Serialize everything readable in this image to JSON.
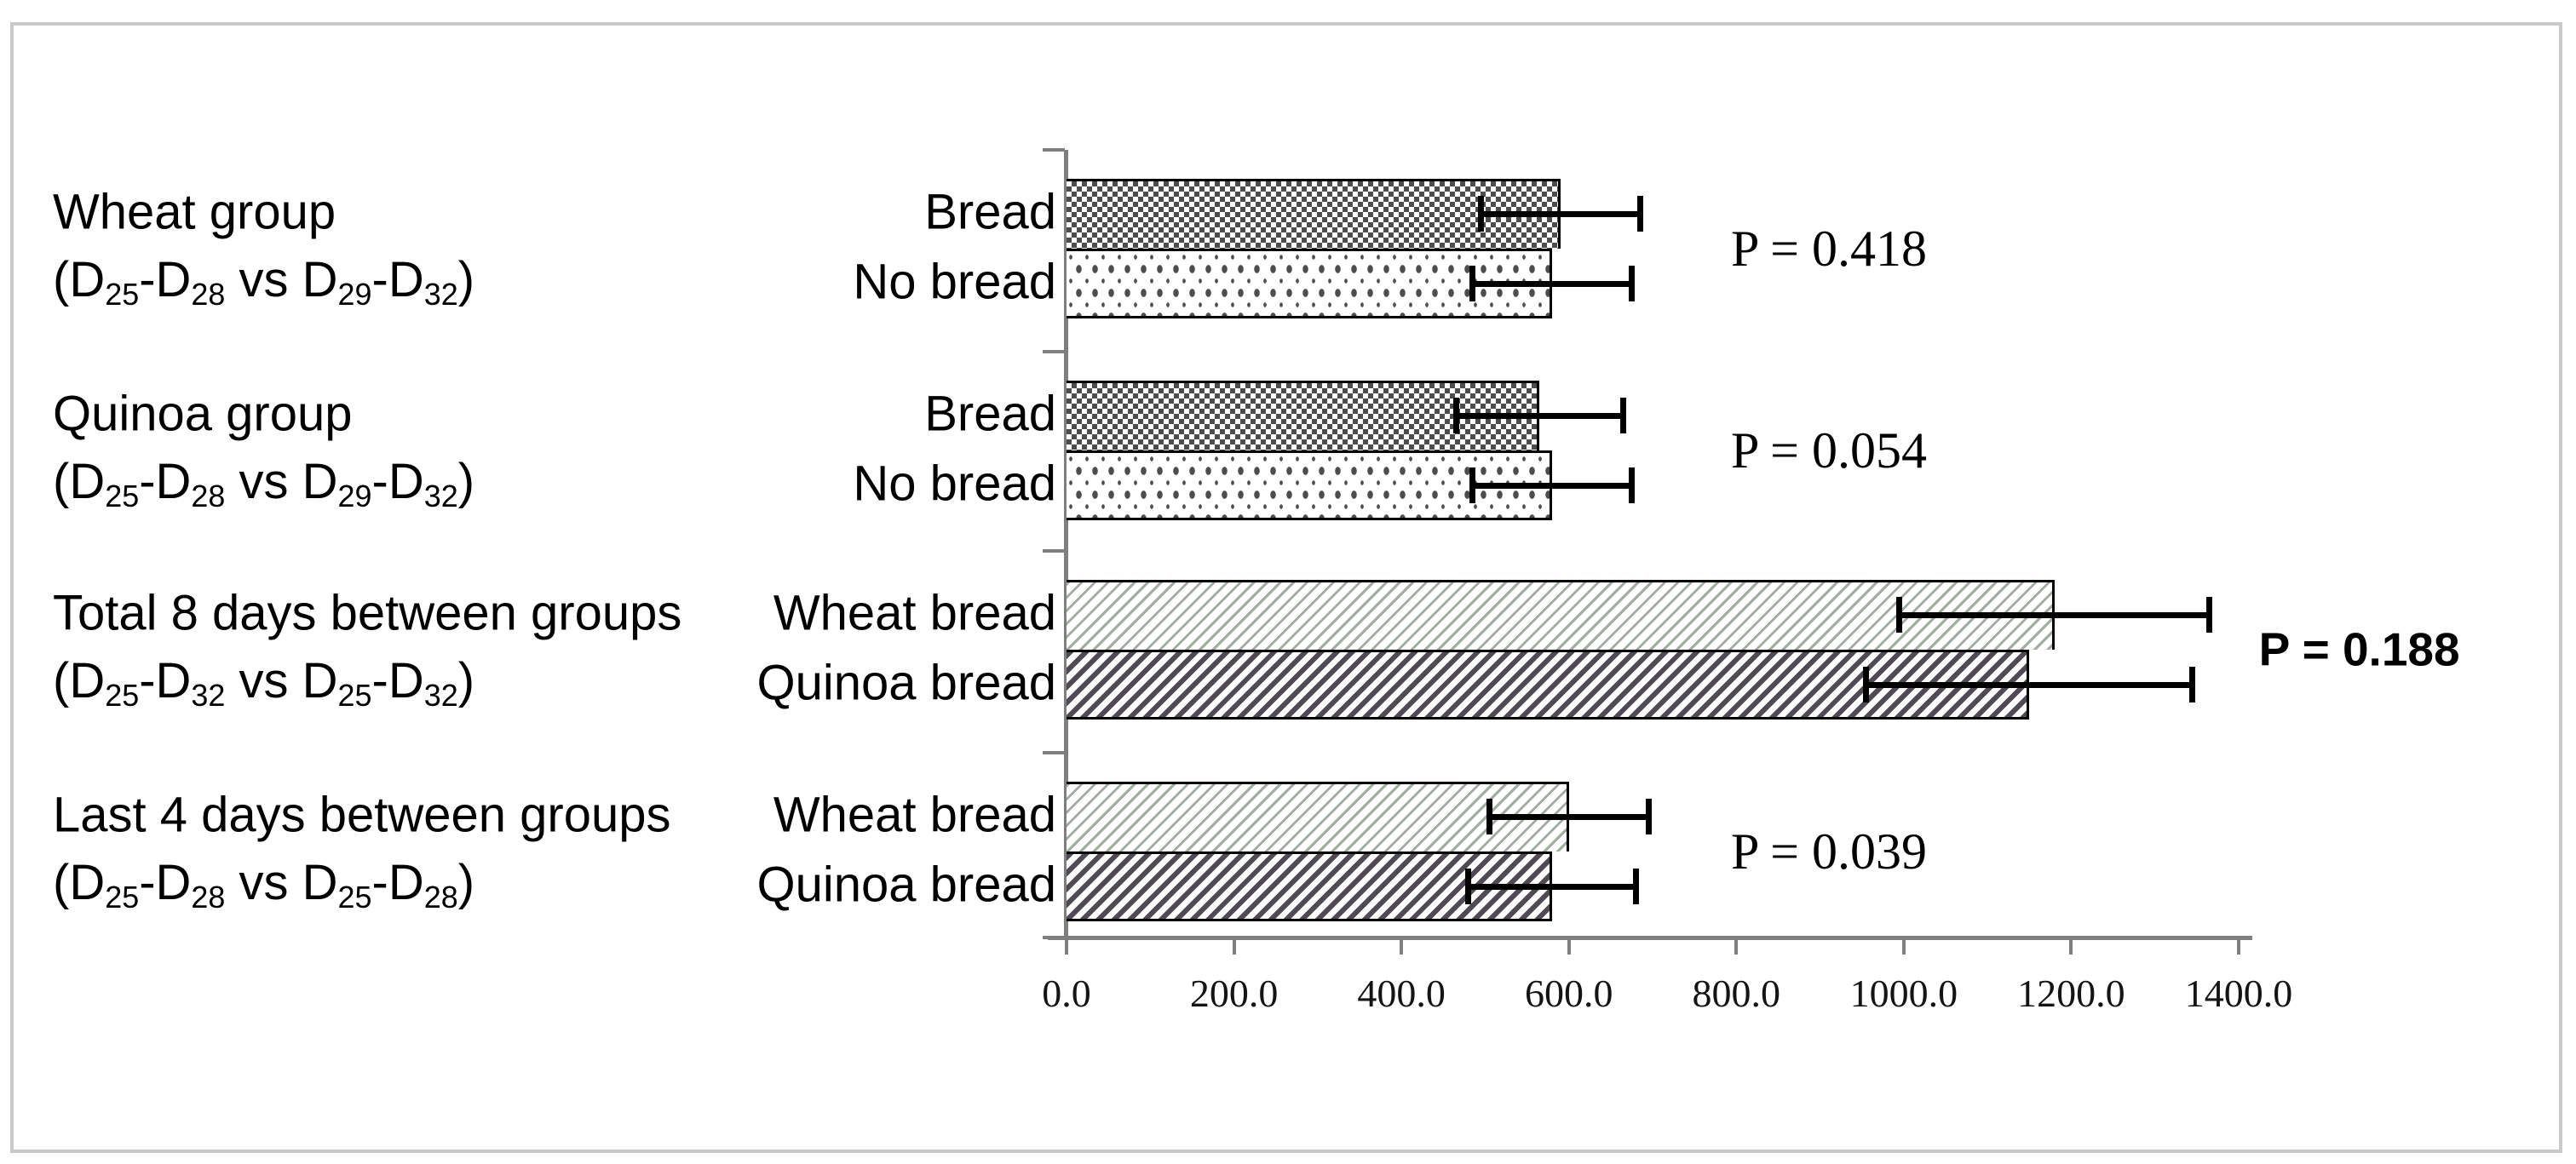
{
  "figure": {
    "background": "#ffffff",
    "frame_border_color": "#c9c9c9",
    "axis_color": "#7f7f7f",
    "ink_color": "#000000",
    "pattern_dark": "#4d4d4d",
    "pattern_light_line": "#a2ada2",
    "pattern_dark_line": "#4f4a54"
  },
  "chart_data": {
    "type": "bar",
    "orientation": "horizontal",
    "title": "",
    "xlabel": "",
    "ylabel": "",
    "xlim": [
      0,
      1400
    ],
    "grid": false,
    "x_tick_labels": [
      "0.0",
      "200.0",
      "400.0",
      "600.0",
      "800.0",
      "1000.0",
      "1200.0",
      "1400.0"
    ],
    "groups": [
      {
        "label": "Wheat group",
        "sublabel": "(D₂₅-D₂₈ vs D₂₉-D₃₂)",
        "sublabel_parts": [
          {
            "t": "(D"
          },
          {
            "t": "25",
            "sub": true
          },
          {
            "t": "-D"
          },
          {
            "t": "28",
            "sub": true
          },
          {
            "t": " vs D"
          },
          {
            "t": "29",
            "sub": true
          },
          {
            "t": "-D"
          },
          {
            "t": "32",
            "sub": true
          },
          {
            "t": ")"
          }
        ],
        "p_label": "P = 0.418",
        "p_style": "serif",
        "bars": [
          {
            "label": "Bread",
            "value": 590,
            "error": 95,
            "pattern": "dark-checker"
          },
          {
            "label": "No bread",
            "value": 580,
            "error": 95,
            "pattern": "light-dots"
          }
        ]
      },
      {
        "label": "Quinoa group",
        "sublabel": "(D₂₅-D₂₈ vs D₂₉-D₃₂)",
        "sublabel_parts": [
          {
            "t": "(D"
          },
          {
            "t": "25",
            "sub": true
          },
          {
            "t": "-D"
          },
          {
            "t": "28",
            "sub": true
          },
          {
            "t": " vs D"
          },
          {
            "t": "29",
            "sub": true
          },
          {
            "t": "-D"
          },
          {
            "t": "32",
            "sub": true
          },
          {
            "t": ")"
          }
        ],
        "p_label": "P = 0.054",
        "p_style": "serif",
        "bars": [
          {
            "label": "Bread",
            "value": 565,
            "error": 100,
            "pattern": "dark-checker"
          },
          {
            "label": "No bread",
            "value": 580,
            "error": 95,
            "pattern": "light-dots"
          }
        ]
      },
      {
        "label": "Total 8 days between groups",
        "sublabel": "(D₂₅-D₃₂ vs D₂₅-D₃₂)",
        "sublabel_parts": [
          {
            "t": "(D"
          },
          {
            "t": "25",
            "sub": true
          },
          {
            "t": "-D"
          },
          {
            "t": "32",
            "sub": true
          },
          {
            "t": " vs D"
          },
          {
            "t": "25",
            "sub": true
          },
          {
            "t": "-D"
          },
          {
            "t": "32",
            "sub": true
          },
          {
            "t": ")"
          }
        ],
        "p_label": "P = 0.188",
        "p_style": "sans-bold",
        "bars": [
          {
            "label": "Wheat bread",
            "value": 1180,
            "error": 185,
            "pattern": "light-diagonal"
          },
          {
            "label": "Quinoa bread",
            "value": 1150,
            "error": 195,
            "pattern": "dark-diagonal"
          }
        ]
      },
      {
        "label": "Last 4 days between groups",
        "sublabel": "(D₂₅-D₂₈ vs D₂₅-D₂₈)",
        "sublabel_parts": [
          {
            "t": "(D"
          },
          {
            "t": "25",
            "sub": true
          },
          {
            "t": "-D"
          },
          {
            "t": "28",
            "sub": true
          },
          {
            "t": " vs D"
          },
          {
            "t": "25",
            "sub": true
          },
          {
            "t": "-D"
          },
          {
            "t": "28",
            "sub": true
          },
          {
            "t": ")"
          }
        ],
        "p_label": "P = 0.039",
        "p_style": "serif",
        "bars": [
          {
            "label": "Wheat bread",
            "value": 600,
            "error": 95,
            "pattern": "light-diagonal"
          },
          {
            "label": "Quinoa bread",
            "value": 580,
            "error": 100,
            "pattern": "dark-diagonal"
          }
        ]
      }
    ]
  }
}
